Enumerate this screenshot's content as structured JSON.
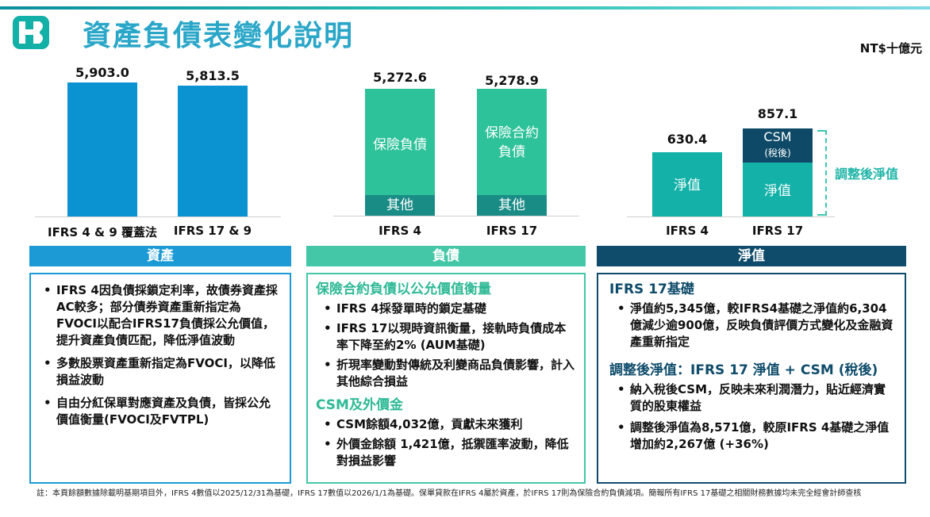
{
  "header": {
    "title": "資產負債表變化說明",
    "unit": "NT$十億元"
  },
  "colors": {
    "assets": "#0b93d1",
    "liabilities": "#2ec29a",
    "liab_other": "#1a8c86",
    "equity": "#13b1a8",
    "csm": "#0e4a67",
    "assets_head": "#1b9ad6",
    "liab_head": "#43c7a6",
    "equity_head": "#0f4c6b"
  },
  "chart_data": [
    {
      "type": "bar",
      "title": "資產",
      "categories": [
        "IFRS 4 & 9 覆蓋法",
        "IFRS 17 & 9"
      ],
      "values": [
        5903.0,
        5813.5
      ],
      "value_labels": [
        "5,903.0",
        "5,813.5"
      ]
    },
    {
      "type": "bar",
      "title": "負債",
      "stacked": true,
      "categories": [
        "IFRS 4",
        "IFRS 17"
      ],
      "totals": [
        5272.6,
        5278.9
      ],
      "total_labels": [
        "5,272.6",
        "5,278.9"
      ],
      "series": [
        {
          "name": "保險負債 / 保險合約負債",
          "labels": [
            "保險負債",
            "保險合約負債"
          ]
        },
        {
          "name": "其他",
          "labels": [
            "其他",
            "其他"
          ]
        }
      ]
    },
    {
      "type": "bar",
      "title": "淨值",
      "stacked": true,
      "categories": [
        "IFRS 4",
        "IFRS 17"
      ],
      "totals": [
        630.4,
        857.1
      ],
      "total_labels": [
        "630.4",
        "857.1"
      ],
      "series": [
        {
          "name": "淨值",
          "labels": [
            "淨值",
            "淨值"
          ]
        },
        {
          "name": "CSM (稅後)",
          "label_main": "CSM",
          "label_sub": "(稅後)"
        }
      ],
      "annotation": "調整後淨值"
    }
  ],
  "assets": {
    "heading": "資產",
    "bullets": [
      "IFRS 4因負債採鎖定利率，故債券資產採AC較多；部分債券資產重新指定為FVOCI以配合IFRS17負債採公允價值，提升資產負債匹配，降低淨值波動",
      "多數股票資產重新指定為FVOCI，以降低損益波動",
      "自由分紅保單對應資產及負債，皆採公允價值衡量(FVOCI及FVTPL)"
    ]
  },
  "liabilities": {
    "heading": "負債",
    "sub1": "保險合約負債以公允價值衡量",
    "bullets1": [
      "IFRS 4採發單時的鎖定基礎",
      "IFRS 17以現時資訊衡量，接軌時負債成本率下降至約2% (AUM基礎)",
      "折現率變動對傳統及利變商品負債影響，計入其他綜合損益"
    ],
    "sub2": "CSM及外價金",
    "bullets2": [
      "CSM餘額4,032億，貢獻未來獲利",
      "外價金餘額 1,421億，抵禦匯率波動，降低對損益影響"
    ]
  },
  "equity": {
    "heading": "淨值",
    "sub1": "IFRS 17基礎",
    "bullets1": [
      "淨值約5,345億，較IFRS4基礎之淨值約6,304 億減少逾900億，反映負債評價方式變化及金融資產重新指定"
    ],
    "sub2": "調整後淨值：IFRS 17 淨值 + CSM (稅後)",
    "bullets2": [
      "納入稅後CSM，反映未來利潤潛力，貼近經濟實質的股東權益",
      "調整後淨值為8,571億，較原IFRS 4基礎之淨值增加約2,267億 (+36%)"
    ]
  },
  "footnote": "註：本頁餘額數據除載明基期項目外，IFRS 4數值以2025/12/31為基礎，IFRS 17數值以2026/1/1為基礎。保單貸款在IFRS 4屬於資產，於IFRS 17則為保險合約負債減項。簡報所有IFRS 17基礎之相關財務數據均未完全經會計師查核"
}
